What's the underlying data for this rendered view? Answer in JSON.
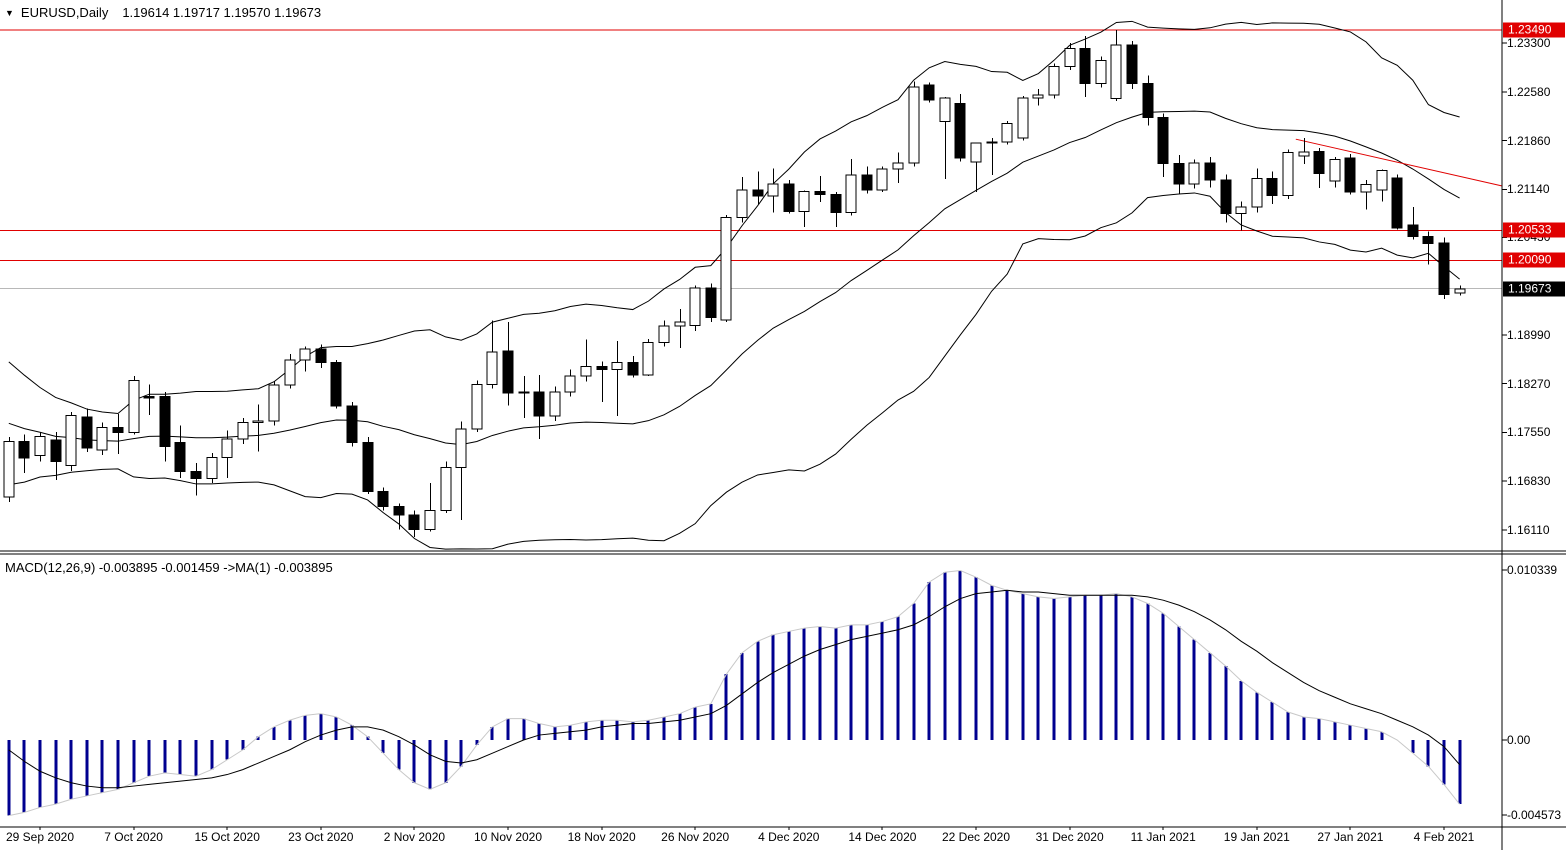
{
  "title": {
    "dropdown_icon": "▼",
    "symbol_period": "EURUSD,Daily",
    "ohlc": "1.19614 1.19717 1.19570 1.19673"
  },
  "macd": {
    "label": "MACD(12,26,9) -0.003895 -0.001459  ->MA(1) -0.003895"
  },
  "colors": {
    "background": "#ffffff",
    "bull_body": "#ffffff",
    "bear_body": "#000000",
    "wick": "#000000",
    "band_line": "#000000",
    "level_line": "#e00000",
    "trendline": "#e00000",
    "current_line": "#b8b8b8",
    "macd_bar": "#000090",
    "macd_line": "#c8c8c8",
    "macd_signal": "#000000",
    "badge_red_bg": "#e00000",
    "badge_black_bg": "#000000",
    "badge_text": "#ffffff",
    "axis_border": "#000000"
  },
  "price_axis": {
    "ticks": [
      {
        "text": "1.23300",
        "value": 1.233
      },
      {
        "text": "1.22580",
        "value": 1.2258
      },
      {
        "text": "1.21860",
        "value": 1.2186
      },
      {
        "text": "1.21140",
        "value": 1.2114
      },
      {
        "text": "1.20430",
        "value": 1.2043
      },
      {
        "text": "1.18990",
        "value": 1.1899
      },
      {
        "text": "1.18270",
        "value": 1.1827
      },
      {
        "text": "1.17550",
        "value": 1.1755
      },
      {
        "text": "1.16830",
        "value": 1.1683
      },
      {
        "text": "1.16110",
        "value": 1.1611
      }
    ]
  },
  "macd_axis": {
    "ticks": [
      {
        "text": "0.010339",
        "value": 0.010339
      },
      {
        "text": "0.00",
        "value": 0
      },
      {
        "text": "-0.004573",
        "value": -0.004573
      }
    ]
  },
  "badges": [
    {
      "text": "1.23490",
      "value": 1.2349,
      "style": "red"
    },
    {
      "text": "1.20533",
      "value": 1.20533,
      "style": "red"
    },
    {
      "text": "1.20090",
      "value": 1.2009,
      "style": "red"
    },
    {
      "text": "1.19673",
      "value": 1.19673,
      "style": "black"
    }
  ],
  "time_axis": {
    "labels": [
      "29 Sep 2020",
      "7 Oct 2020",
      "15 Oct 2020",
      "23 Oct 2020",
      "2 Nov 2020",
      "10 Nov 2020",
      "18 Nov 2020",
      "26 Nov 2020",
      "4 Dec 2020",
      "14 Dec 2020",
      "22 Dec 2020",
      "31 Dec 2020",
      "11 Jan 2021",
      "19 Jan 2021",
      "27 Jan 2021",
      "4 Feb 2021"
    ],
    "first_candle_index": 2,
    "candle_step": 6
  },
  "chart_data": {
    "type": "candlestick",
    "title": "EURUSD,Daily",
    "subpanel": "MACD(12,26,9)",
    "price_levels": {
      "red_lines": [
        1.2349,
        1.20533,
        1.2009
      ],
      "current_price": 1.19673,
      "trendline": {
        "from_index": 82.5,
        "from_price": 1.2188,
        "to_index": 95.7,
        "to_price": 1.2119
      }
    },
    "candles": [
      [
        1.166,
        1.1748,
        1.1652,
        1.1742
      ],
      [
        1.1742,
        1.1752,
        1.1695,
        1.1717
      ],
      [
        1.1721,
        1.1755,
        1.1712,
        1.1749
      ],
      [
        1.1744,
        1.1756,
        1.1685,
        1.1712
      ],
      [
        1.1706,
        1.1785,
        1.1698,
        1.178
      ],
      [
        1.1778,
        1.179,
        1.1726,
        1.1732
      ],
      [
        1.1729,
        1.177,
        1.1722,
        1.1762
      ],
      [
        1.1762,
        1.1782,
        1.1723,
        1.1755
      ],
      [
        1.1755,
        1.1838,
        1.1752,
        1.1832
      ],
      [
        1.1808,
        1.1826,
        1.1781,
        1.1806
      ],
      [
        1.1808,
        1.1815,
        1.1712,
        1.1734
      ],
      [
        1.174,
        1.1765,
        1.1688,
        1.1697
      ],
      [
        1.1697,
        1.171,
        1.1662,
        1.1687
      ],
      [
        1.1687,
        1.1725,
        1.168,
        1.1718
      ],
      [
        1.1718,
        1.1758,
        1.1688,
        1.1745
      ],
      [
        1.1745,
        1.1776,
        1.1738,
        1.177
      ],
      [
        1.177,
        1.1796,
        1.1727,
        1.1772
      ],
      [
        1.1772,
        1.183,
        1.1765,
        1.1825
      ],
      [
        1.1825,
        1.1871,
        1.182,
        1.1862
      ],
      [
        1.1862,
        1.1882,
        1.1845,
        1.1878
      ],
      [
        1.1878,
        1.1885,
        1.185,
        1.1858
      ],
      [
        1.1858,
        1.1862,
        1.179,
        1.1794
      ],
      [
        1.1794,
        1.18,
        1.1734,
        1.174
      ],
      [
        1.174,
        1.1748,
        1.1664,
        1.1668
      ],
      [
        1.1668,
        1.1674,
        1.164,
        1.1646
      ],
      [
        1.1646,
        1.165,
        1.1612,
        1.1633
      ],
      [
        1.1633,
        1.164,
        1.1601,
        1.1612
      ],
      [
        1.1612,
        1.168,
        1.1609,
        1.164
      ],
      [
        1.164,
        1.1712,
        1.1636,
        1.1703
      ],
      [
        1.1703,
        1.1771,
        1.1626,
        1.176
      ],
      [
        1.176,
        1.1832,
        1.1756,
        1.1826
      ],
      [
        1.1826,
        1.192,
        1.182,
        1.1874
      ],
      [
        1.1875,
        1.1918,
        1.1795,
        1.1813
      ],
      [
        1.1813,
        1.1838,
        1.1776,
        1.1815
      ],
      [
        1.1815,
        1.184,
        1.1745,
        1.1779
      ],
      [
        1.1779,
        1.1823,
        1.1772,
        1.1815
      ],
      [
        1.1815,
        1.1848,
        1.1808,
        1.1838
      ],
      [
        1.1838,
        1.1892,
        1.183,
        1.1852
      ],
      [
        1.1852,
        1.186,
        1.18,
        1.1848
      ],
      [
        1.1848,
        1.189,
        1.1779,
        1.1858
      ],
      [
        1.1858,
        1.1868,
        1.1836,
        1.184
      ],
      [
        1.184,
        1.1893,
        1.1838,
        1.1888
      ],
      [
        1.1888,
        1.192,
        1.1882,
        1.1912
      ],
      [
        1.1912,
        1.1937,
        1.188,
        1.1918
      ],
      [
        1.1913,
        1.1972,
        1.1905,
        1.1968
      ],
      [
        1.1968,
        1.1975,
        1.1918,
        1.1925
      ],
      [
        1.1921,
        1.2076,
        1.1918,
        1.2072
      ],
      [
        1.2072,
        1.2132,
        1.2065,
        1.2113
      ],
      [
        1.2113,
        1.214,
        1.2092,
        1.2104
      ],
      [
        1.2104,
        1.2145,
        1.208,
        1.2122
      ],
      [
        1.2122,
        1.2128,
        1.2078,
        1.2081
      ],
      [
        1.2081,
        1.2112,
        1.2058,
        1.2111
      ],
      [
        1.2111,
        1.2134,
        1.2095,
        1.2106
      ],
      [
        1.2106,
        1.211,
        1.2058,
        1.208
      ],
      [
        1.208,
        1.2159,
        1.2075,
        1.2135
      ],
      [
        1.2135,
        1.2148,
        1.2108,
        1.2113
      ],
      [
        1.2113,
        1.2148,
        1.211,
        1.2144
      ],
      [
        1.2144,
        1.2168,
        1.2123,
        1.2153
      ],
      [
        1.2153,
        1.2273,
        1.2148,
        1.2265
      ],
      [
        1.2268,
        1.2272,
        1.2242,
        1.2246
      ],
      [
        1.2214,
        1.225,
        1.2129,
        1.2249
      ],
      [
        1.2241,
        1.2255,
        1.2155,
        1.216
      ],
      [
        1.2154,
        1.2165,
        1.211,
        1.2182
      ],
      [
        1.2182,
        1.219,
        1.2135,
        1.2184
      ],
      [
        1.2184,
        1.2215,
        1.218,
        1.2211
      ],
      [
        1.219,
        1.2252,
        1.2186,
        1.2249
      ],
      [
        1.2249,
        1.2262,
        1.2238,
        1.2253
      ],
      [
        1.2253,
        1.23,
        1.2248,
        1.2295
      ],
      [
        1.2295,
        1.233,
        1.229,
        1.2322
      ],
      [
        1.2322,
        1.234,
        1.225,
        1.227
      ],
      [
        1.227,
        1.231,
        1.2264,
        1.2304
      ],
      [
        1.2248,
        1.2349,
        1.2244,
        1.2327
      ],
      [
        1.2327,
        1.2333,
        1.2262,
        1.227
      ],
      [
        1.227,
        1.2282,
        1.2208,
        1.222
      ],
      [
        1.222,
        1.2226,
        1.2132,
        1.2152
      ],
      [
        1.2152,
        1.2165,
        1.2108,
        1.2122
      ],
      [
        1.2122,
        1.2158,
        1.2115,
        1.2153
      ],
      [
        1.2153,
        1.2162,
        1.2117,
        1.2128
      ],
      [
        1.2128,
        1.2136,
        1.2065,
        1.2078
      ],
      [
        1.2078,
        1.2096,
        1.2053,
        1.2088
      ],
      [
        1.2088,
        1.2145,
        1.208,
        1.213
      ],
      [
        1.213,
        1.214,
        1.2092,
        1.2105
      ],
      [
        1.2105,
        1.2173,
        1.21,
        1.2168
      ],
      [
        1.2163,
        1.219,
        1.2151,
        1.2169
      ],
      [
        1.217,
        1.2175,
        1.2116,
        1.2137
      ],
      [
        1.2126,
        1.2162,
        1.2117,
        1.2158
      ],
      [
        1.216,
        1.2166,
        1.2106,
        1.211
      ],
      [
        1.211,
        1.2128,
        1.2084,
        1.2121
      ],
      [
        1.2113,
        1.2143,
        1.2096,
        1.2142
      ],
      [
        1.2131,
        1.2136,
        1.2055,
        1.2057
      ],
      [
        1.2061,
        1.2088,
        1.204,
        1.2044
      ],
      [
        1.2044,
        1.2052,
        1.2003,
        1.2034
      ],
      [
        1.2035,
        1.2043,
        1.1952,
        1.1959
      ],
      [
        1.1961,
        1.1972,
        1.1957,
        1.1967
      ]
    ],
    "indicators": {
      "bollinger": {
        "period": 20,
        "deviation": 2,
        "seed_closes": [
          1.189,
          1.1875,
          1.1855,
          1.1835,
          1.1815,
          1.18,
          1.1785,
          1.177,
          1.1755,
          1.174,
          1.1728,
          1.1718,
          1.1712,
          1.1718,
          1.1728,
          1.174,
          1.1752,
          1.1762,
          1.1768,
          1.1772
        ]
      },
      "macd": {
        "params": "12,26,9",
        "current": -0.003895,
        "signal_current": -0.001459,
        "values": [
          -0.0046,
          -0.0044,
          -0.0041,
          -0.0039,
          -0.0036,
          -0.0034,
          -0.0032,
          -0.003,
          -0.0026,
          -0.0022,
          -0.002,
          -0.0021,
          -0.0022,
          -0.0018,
          -0.0012,
          -0.0006,
          0.0002,
          0.0008,
          0.0012,
          0.0015,
          0.0016,
          0.0014,
          0.0009,
          0.0002,
          -0.0008,
          -0.0018,
          -0.0026,
          -0.003,
          -0.0026,
          -0.0016,
          -0.0003,
          0.0008,
          0.0013,
          0.0013,
          0.001,
          0.0008,
          0.0009,
          0.0011,
          0.0012,
          0.0012,
          0.0011,
          0.0012,
          0.0014,
          0.0016,
          0.002,
          0.0022,
          0.004,
          0.0053,
          0.006,
          0.0064,
          0.0066,
          0.0068,
          0.0069,
          0.0068,
          0.007,
          0.007,
          0.0072,
          0.0075,
          0.0083,
          0.0096,
          0.0102,
          0.0103,
          0.0099,
          0.0094,
          0.0091,
          0.0089,
          0.0087,
          0.0086,
          0.0087,
          0.0088,
          0.0088,
          0.0089,
          0.0087,
          0.0083,
          0.0077,
          0.0069,
          0.0061,
          0.0053,
          0.0045,
          0.0036,
          0.0029,
          0.0023,
          0.0017,
          0.0014,
          0.0013,
          0.0011,
          0.0009,
          0.0007,
          0.0005,
          0.0,
          -0.0008,
          -0.0016,
          -0.0027,
          -0.0039
        ],
        "signal": [
          -0.0006,
          -0.0013,
          -0.0019,
          -0.0023,
          -0.0026,
          -0.0028,
          -0.0029,
          -0.0029,
          -0.0028,
          -0.0027,
          -0.0026,
          -0.0025,
          -0.0024,
          -0.0023,
          -0.0021,
          -0.0018,
          -0.0014,
          -0.001,
          -0.0006,
          -0.0001,
          0.0003,
          0.0006,
          0.0008,
          0.0008,
          0.0006,
          0.0002,
          -0.0003,
          -0.0009,
          -0.0013,
          -0.0014,
          -0.0012,
          -0.0008,
          -0.0004,
          0.0,
          0.0003,
          0.0004,
          0.0005,
          0.0006,
          0.0008,
          0.0009,
          0.001,
          0.001,
          0.0011,
          0.0012,
          0.0014,
          0.0016,
          0.0021,
          0.0028,
          0.0035,
          0.0041,
          0.0046,
          0.0051,
          0.0055,
          0.0058,
          0.0061,
          0.0063,
          0.0065,
          0.0067,
          0.007,
          0.0075,
          0.0081,
          0.0086,
          0.0089,
          0.009,
          0.0091,
          0.009,
          0.009,
          0.0089,
          0.0088,
          0.0088,
          0.0088,
          0.0088,
          0.0088,
          0.0087,
          0.0085,
          0.0082,
          0.0078,
          0.0073,
          0.0067,
          0.006,
          0.0054,
          0.0047,
          0.0041,
          0.0035,
          0.003,
          0.0026,
          0.0022,
          0.0019,
          0.0016,
          0.0012,
          0.0008,
          0.0003,
          -0.0004,
          -0.0015
        ]
      }
    }
  }
}
